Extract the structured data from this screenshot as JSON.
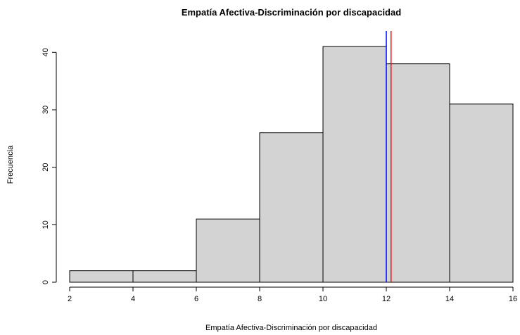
{
  "chart_data": {
    "type": "bar",
    "subtype": "histogram",
    "title": "Empatía Afectiva-Discriminación por discapacidad",
    "xlabel": "Empatía Afectiva-Discriminación por discapacidad",
    "ylabel": "Frecuencia",
    "bins": [
      {
        "from": 2,
        "to": 4,
        "count": 2
      },
      {
        "from": 4,
        "to": 6,
        "count": 2
      },
      {
        "from": 6,
        "to": 8,
        "count": 11
      },
      {
        "from": 8,
        "to": 10,
        "count": 26
      },
      {
        "from": 10,
        "to": 12,
        "count": 41
      },
      {
        "from": 12,
        "to": 14,
        "count": 38
      },
      {
        "from": 14,
        "to": 16,
        "count": 31
      }
    ],
    "xlim": [
      2,
      16
    ],
    "ylim": [
      0,
      42
    ],
    "x_ticks": [
      2,
      4,
      6,
      8,
      10,
      12,
      14,
      16
    ],
    "y_ticks": [
      0,
      10,
      20,
      30,
      40
    ],
    "bar_color": "#d3d3d3",
    "vertical_lines": [
      {
        "x": 12.0,
        "color": "#0000ff"
      },
      {
        "x": 12.15,
        "color": "#ff0000"
      }
    ],
    "grid": false
  }
}
